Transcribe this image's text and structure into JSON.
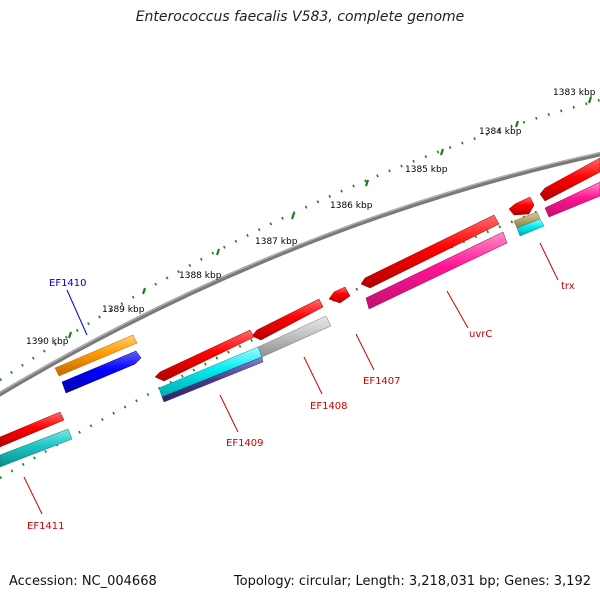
{
  "title": "Enterococcus faecalis V583, complete genome",
  "footer": {
    "accession": "Accession: NC_004668",
    "summary": "Topology: circular; Length: 3,218,031 bp; Genes: 3,192"
  },
  "colors": {
    "backbone": "#7a7a7a",
    "tick": "#1e7d1e",
    "label_red": "#cc0000",
    "label_blue": "#0000cc"
  },
  "kbp_labels": [
    "1383 kbp",
    "1384 kbp",
    "1385 kbp",
    "1386 kbp",
    "1387 kbp",
    "1388 kbp",
    "1389 kbp",
    "1390 kbp"
  ],
  "gene_labels": [
    "trx",
    "uvrC",
    "EF1407",
    "EF1408",
    "EF1409",
    "EF1410",
    "EF1411"
  ],
  "feature_colors": [
    "red",
    "magenta",
    "cyan",
    "grey",
    "tan",
    "indigo",
    "orange",
    "blue"
  ]
}
